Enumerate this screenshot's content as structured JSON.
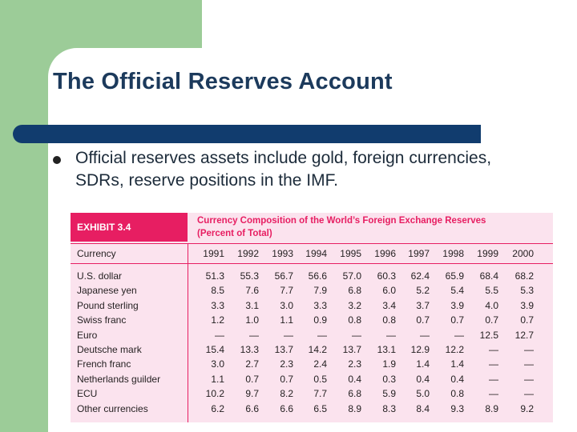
{
  "slide": {
    "title": "The Official Reserves Account",
    "bullet": "Official reserves assets include gold, foreign currencies, SDRs, reserve positions in the IMF."
  },
  "exhibit": {
    "label": "EXHIBIT 3.4",
    "title_line1": "Currency Composition of the World’s Foreign Exchange Reserves",
    "title_line2": "(Percent of Total)",
    "header_label": "Currency",
    "years": [
      "1991",
      "1992",
      "1993",
      "1994",
      "1995",
      "1996",
      "1997",
      "1998",
      "1999",
      "2000"
    ],
    "rows": [
      {
        "label": "U.S. dollar",
        "values": [
          "51.3",
          "55.3",
          "56.7",
          "56.6",
          "57.0",
          "60.3",
          "62.4",
          "65.9",
          "68.4",
          "68.2"
        ]
      },
      {
        "label": "Japanese yen",
        "values": [
          "8.5",
          "7.6",
          "7.7",
          "7.9",
          "6.8",
          "6.0",
          "5.2",
          "5.4",
          "5.5",
          "5.3"
        ]
      },
      {
        "label": "Pound sterling",
        "values": [
          "3.3",
          "3.1",
          "3.0",
          "3.3",
          "3.2",
          "3.4",
          "3.7",
          "3.9",
          "4.0",
          "3.9"
        ]
      },
      {
        "label": "Swiss franc",
        "values": [
          "1.2",
          "1.0",
          "1.1",
          "0.9",
          "0.8",
          "0.8",
          "0.7",
          "0.7",
          "0.7",
          "0.7"
        ]
      },
      {
        "label": "Euro",
        "values": [
          "—",
          "—",
          "—",
          "—",
          "—",
          "—",
          "—",
          "—",
          "12.5",
          "12.7"
        ]
      },
      {
        "label": "Deutsche mark",
        "values": [
          "15.4",
          "13.3",
          "13.7",
          "14.2",
          "13.7",
          "13.1",
          "12.9",
          "12.2",
          "—",
          "—"
        ]
      },
      {
        "label": "French franc",
        "values": [
          "3.0",
          "2.7",
          "2.3",
          "2.4",
          "2.3",
          "1.9",
          "1.4",
          "1.4",
          "—",
          "—"
        ]
      },
      {
        "label": "Netherlands guilder",
        "values": [
          "1.1",
          "0.7",
          "0.7",
          "0.5",
          "0.4",
          "0.3",
          "0.4",
          "0.4",
          "—",
          "—"
        ]
      },
      {
        "label": "ECU",
        "values": [
          "10.2",
          "9.7",
          "8.2",
          "7.7",
          "6.8",
          "5.9",
          "5.0",
          "0.8",
          "—",
          "—"
        ]
      },
      {
        "label": "Other currencies",
        "values": [
          "6.2",
          "6.6",
          "6.6",
          "6.5",
          "8.9",
          "8.3",
          "8.4",
          "9.3",
          "8.9",
          "9.2"
        ]
      }
    ]
  },
  "colors": {
    "green": "#9ccc98",
    "rule": "#113c6e",
    "exhibit_accent": "#e71e62",
    "exhibit_bg": "#fbe3ee"
  }
}
